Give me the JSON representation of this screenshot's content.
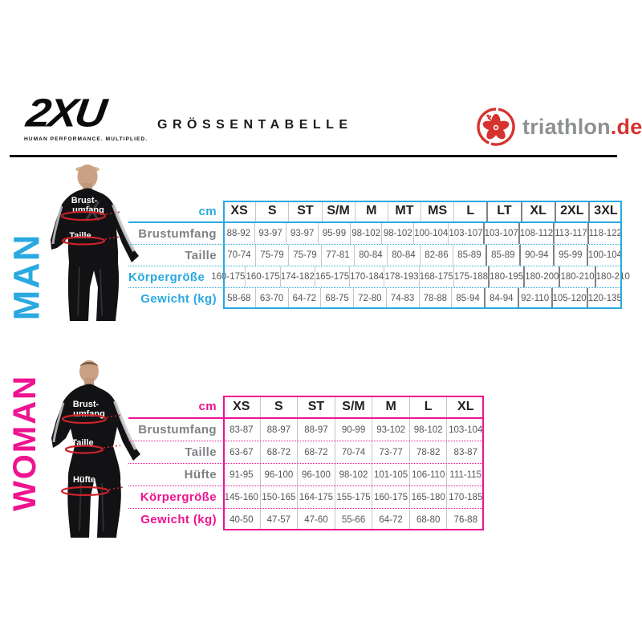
{
  "header": {
    "brand": "2XU",
    "brand_tagline": "HUMAN PERFORMANCE. MULTIPLIED.",
    "title": "GRÖSSENTABELLE",
    "partner": {
      "name": "triathlon",
      "tld": ".de",
      "icon": "hibiscus-flower-icon"
    }
  },
  "colors": {
    "man_accent": "#29A9E0",
    "woman_accent": "#EE1390",
    "measure_red": "#CC2229",
    "logo_red": "#D63330",
    "logo_gray": "#8E9192",
    "data_text": "#55565A",
    "label_gray": "#7F8285",
    "header_text": "#232122"
  },
  "man": {
    "section_label": "MAN",
    "figure": {
      "chest_label_line1": "Brust-",
      "chest_label_line2": "umfang",
      "waist_label": "Taille"
    },
    "table": {
      "unit_label": "cm",
      "columns": [
        "XS",
        "S",
        "ST",
        "S/M",
        "M",
        "MT",
        "MS",
        "L",
        "LT",
        "XL",
        "2XL",
        "3XL"
      ],
      "rows": [
        {
          "label": "Brustumfang",
          "accent": false,
          "values": [
            "88-92",
            "93-97",
            "93-97",
            "95-99",
            "98-102",
            "98-102",
            "100-104",
            "103-107",
            "103-107",
            "108-112",
            "113-117",
            "118-122"
          ]
        },
        {
          "label": "Taille",
          "accent": false,
          "values": [
            "70-74",
            "75-79",
            "75-79",
            "77-81",
            "80-84",
            "80-84",
            "82-86",
            "85-89",
            "85-89",
            "90-94",
            "95-99",
            "100-104"
          ]
        },
        {
          "label": "Körpergröße",
          "accent": true,
          "values": [
            "160-175",
            "160-175",
            "174-182",
            "165-175",
            "170-184",
            "178-193",
            "168-175",
            "175-188",
            "180-195",
            "180-200",
            "180-210",
            "180-210"
          ]
        },
        {
          "label": "Gewicht (kg)",
          "accent": true,
          "values": [
            "58-68",
            "63-70",
            "64-72",
            "68-75",
            "72-80",
            "74-83",
            "78-88",
            "85-94",
            "84-94",
            "92-110",
            "105-120",
            "120-135"
          ]
        }
      ]
    }
  },
  "woman": {
    "section_label": "WOMAN",
    "figure": {
      "chest_label_line1": "Brust-",
      "chest_label_line2": "umfang",
      "waist_label": "Taille",
      "hip_label": "Hüfte"
    },
    "table": {
      "unit_label": "cm",
      "columns": [
        "XS",
        "S",
        "ST",
        "S/M",
        "M",
        "L",
        "XL"
      ],
      "rows": [
        {
          "label": "Brustumfang",
          "accent": false,
          "values": [
            "83-87",
            "88-97",
            "88-97",
            "90-99",
            "93-102",
            "98-102",
            "103-104"
          ]
        },
        {
          "label": "Taille",
          "accent": false,
          "values": [
            "63-67",
            "68-72",
            "68-72",
            "70-74",
            "73-77",
            "78-82",
            "83-87"
          ]
        },
        {
          "label": "Hüfte",
          "accent": false,
          "values": [
            "91-95",
            "96-100",
            "96-100",
            "98-102",
            "101-105",
            "106-110",
            "111-115"
          ]
        },
        {
          "label": "Körpergröße",
          "accent": true,
          "values": [
            "145-160",
            "150-165",
            "164-175",
            "155-175",
            "160-175",
            "165-180",
            "170-185"
          ]
        },
        {
          "label": "Gewicht (kg)",
          "accent": true,
          "values": [
            "40-50",
            "47-57",
            "47-60",
            "55-66",
            "64-72",
            "68-80",
            "76-88"
          ]
        }
      ]
    }
  }
}
